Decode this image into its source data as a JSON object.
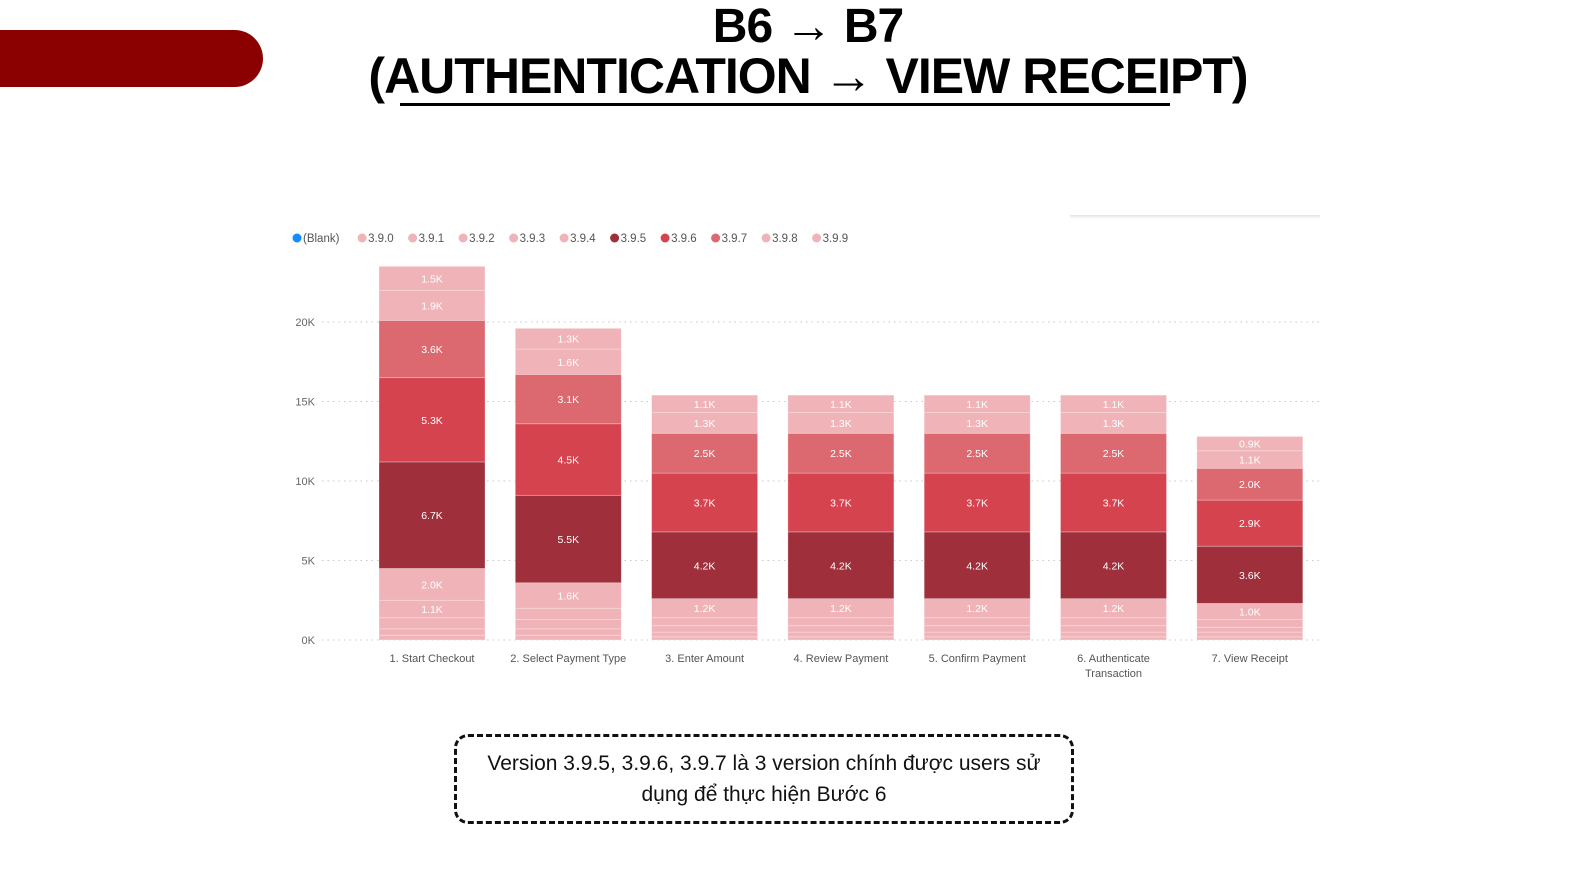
{
  "slide": {
    "title_line1": "B6 → B7",
    "title_line2": "(AUTHENTICATION → VIEW RECEIPT)",
    "callout": "Version 3.9.5, 3.9.6, 3.9.7 là 3 version chính được users sử dụng để thực hiện Bước 6",
    "accent_color": "#8b0000"
  },
  "chart_data": {
    "type": "bar",
    "stacked": true,
    "title": "",
    "xlabel": "",
    "ylabel": "",
    "ylim": [
      0,
      25000
    ],
    "yticks": [
      0,
      5000,
      10000,
      15000,
      20000
    ],
    "ytick_labels": [
      "0K",
      "5K",
      "10K",
      "15K",
      "20K"
    ],
    "grid": true,
    "legend_position": "top-left",
    "categories": [
      "1. Start Checkout",
      "2. Select Payment Type",
      "3. Enter Amount",
      "4. Review Payment",
      "5. Confirm Payment",
      "6. Authenticate Transaction",
      "7. View Receipt"
    ],
    "series": [
      {
        "name": "(Blank)",
        "color": "#118dff",
        "values": [
          0,
          0,
          0,
          0,
          0,
          0,
          0
        ]
      },
      {
        "name": "3.9.0",
        "color": "#efb3b8",
        "values": [
          300,
          300,
          200,
          200,
          200,
          200,
          200
        ]
      },
      {
        "name": "3.9.1",
        "color": "#efb3b8",
        "values": [
          400,
          400,
          300,
          300,
          300,
          300,
          300
        ]
      },
      {
        "name": "3.9.2",
        "color": "#efb3b8",
        "values": [
          700,
          600,
          400,
          400,
          400,
          400,
          300
        ]
      },
      {
        "name": "3.9.3",
        "color": "#efb3b8",
        "values": [
          1100,
          700,
          500,
          500,
          500,
          500,
          500
        ]
      },
      {
        "name": "3.9.4",
        "color": "#efb3b8",
        "values": [
          2000,
          1600,
          1200,
          1200,
          1200,
          1200,
          1000
        ]
      },
      {
        "name": "3.9.5",
        "color": "#9e2f3b",
        "values": [
          6700,
          5500,
          4200,
          4200,
          4200,
          4200,
          3600
        ]
      },
      {
        "name": "3.9.6",
        "color": "#d5434f",
        "values": [
          5300,
          4500,
          3700,
          3700,
          3700,
          3700,
          2900
        ]
      },
      {
        "name": "3.9.7",
        "color": "#dc6870",
        "values": [
          3600,
          3100,
          2500,
          2500,
          2500,
          2500,
          2000
        ]
      },
      {
        "name": "3.9.8",
        "color": "#efb3b8",
        "values": [
          1900,
          1600,
          1300,
          1300,
          1300,
          1300,
          1100
        ]
      },
      {
        "name": "3.9.9",
        "color": "#efb3b8",
        "values": [
          1500,
          1300,
          1100,
          1100,
          1100,
          1100,
          900
        ]
      }
    ],
    "label_min_value": 850
  }
}
